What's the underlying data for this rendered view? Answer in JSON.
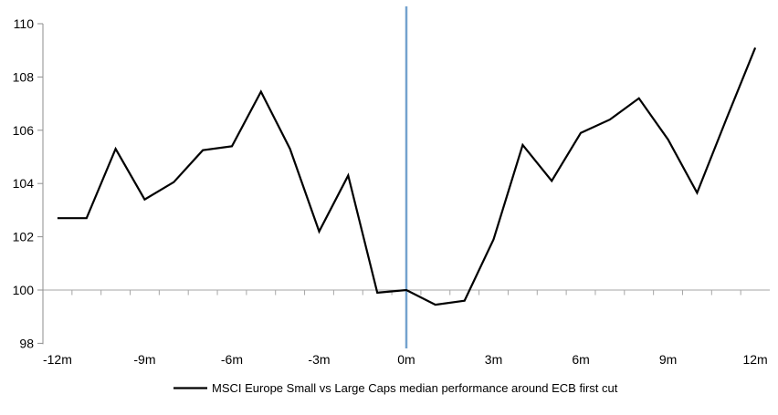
{
  "chart_data": {
    "type": "line",
    "title": "",
    "xlabel": "",
    "ylabel": "",
    "x": [
      -12,
      -11,
      -10,
      -9,
      -8,
      -7,
      -6,
      -5,
      -4,
      -3,
      -2,
      -1,
      0,
      1,
      2,
      3,
      4,
      5,
      6,
      7,
      8,
      9,
      10,
      11,
      12
    ],
    "series": [
      {
        "name": "MSCI Europe Small vs Large Caps median performance around ECB first cut",
        "color": "#000000",
        "values": [
          102.7,
          102.7,
          105.3,
          103.4,
          104.05,
          105.25,
          105.4,
          107.45,
          105.3,
          102.2,
          104.3,
          99.9,
          100.0,
          99.45,
          99.6,
          101.9,
          105.45,
          104.1,
          105.9,
          106.4,
          107.2,
          105.65,
          103.65,
          106.4,
          109.1
        ]
      }
    ],
    "ylim": [
      98,
      110
    ],
    "y_ticks": [
      110,
      108,
      106,
      104,
      102,
      100,
      98
    ],
    "x_tick_positions": [
      -12,
      -9,
      -6,
      -3,
      0,
      3,
      6,
      9,
      12
    ],
    "x_tick_labels": [
      "-12m",
      "-9m",
      "-6m",
      "-3m",
      "0m",
      "3m",
      "6m",
      "9m",
      "12m"
    ],
    "baseline_value": 100,
    "event_line": {
      "x": 0,
      "color": "#74A2CE"
    },
    "grid": "baseline-only",
    "legend_position": "bottom-center",
    "colors": {
      "background": "#FFFFFF",
      "axis": "#8E8E8E",
      "gridline": "#A6A6A6",
      "tick": "#A6A6A6",
      "text": "#000000",
      "series": "#000000",
      "event_line": "#74A2CE"
    }
  }
}
